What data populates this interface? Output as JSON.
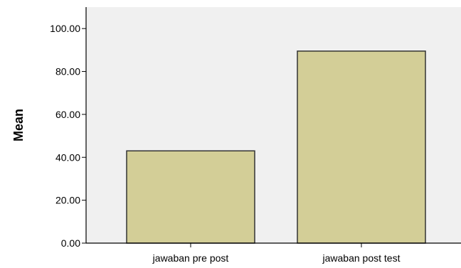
{
  "chart_data": {
    "type": "bar",
    "title": "",
    "xlabel": "",
    "ylabel": "Mean",
    "categories": [
      "jawaban pre post",
      "jawaban post test"
    ],
    "values": [
      43.0,
      89.5
    ],
    "ylim": [
      0,
      110
    ],
    "yticks": [
      0,
      20,
      40,
      60,
      80,
      100
    ],
    "ytick_labels": [
      "0.00",
      "20.00",
      "40.00",
      "60.00",
      "80.00",
      "100.00"
    ],
    "grid": false,
    "legend": "none",
    "colors": {
      "plot_background": "#f0f0f0",
      "bar_fill": "#d3ce97",
      "bar_stroke": "#333333",
      "axis": "#000000"
    }
  }
}
